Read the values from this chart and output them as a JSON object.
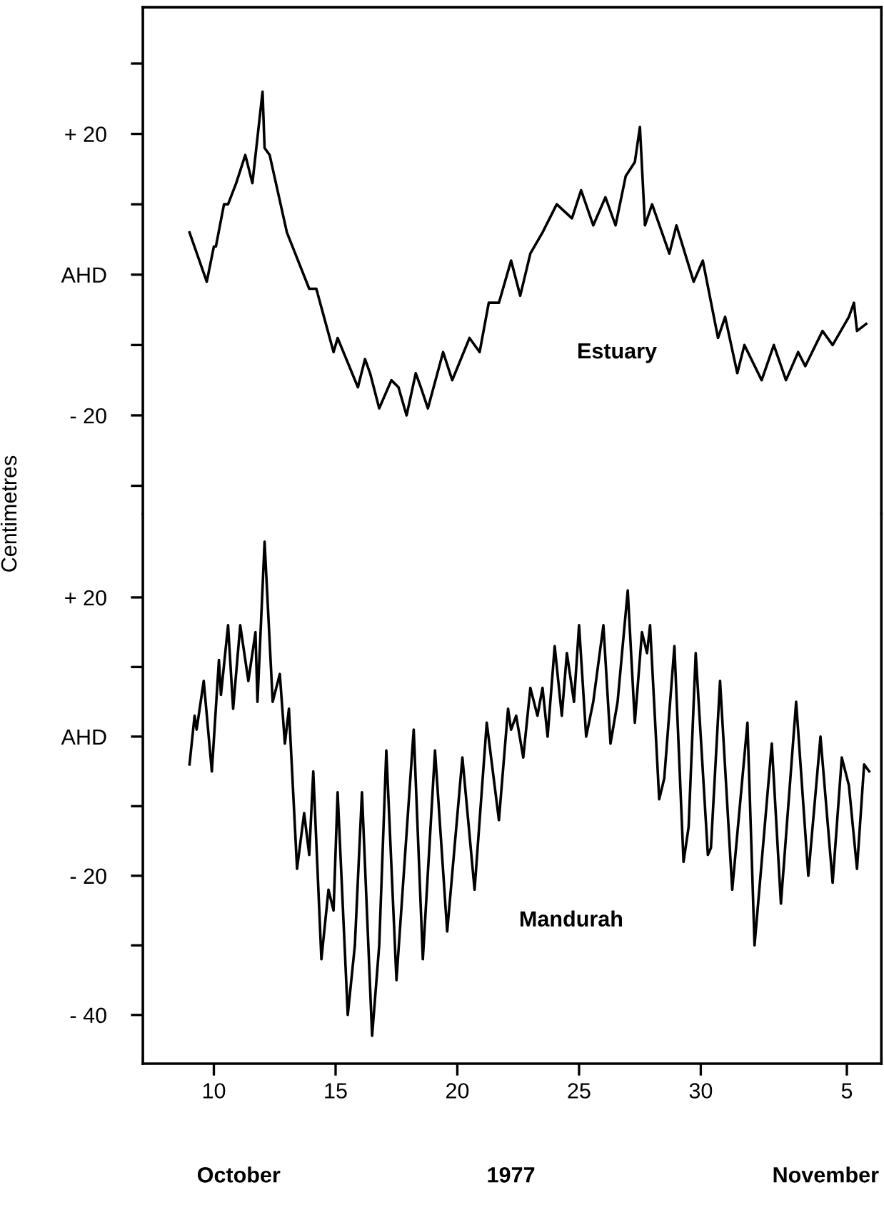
{
  "chart_data": [
    {
      "type": "line",
      "line_style": "solid",
      "tick_labels": "y",
      "xlim": [
        "1977-10-07T02:00",
        "1977-11-06T10:00"
      ],
      "ylim": [
        -34,
        38
      ],
      "yticks": [
        {
          "value": 30,
          "label": null
        },
        {
          "value": 20,
          "label": "+ 20"
        },
        {
          "value": 10,
          "label": null
        },
        {
          "value": 0,
          "label": "AHD"
        },
        {
          "value": -10,
          "label": null
        },
        {
          "value": -20,
          "label": "- 20"
        },
        {
          "value": -30,
          "label": null
        }
      ],
      "series": [
        {
          "name": "Estuary",
          "color": "#000000",
          "x": [
            "1977-10-09T00:00",
            "1977-10-09T17:00",
            "1977-10-10T00:00",
            "1977-10-10T02:00",
            "1977-10-10T10:00",
            "1977-10-10T14:00",
            "1977-10-10T22:00",
            "1977-10-11T07:00",
            "1977-10-11T14:00",
            "1977-10-12T00:00",
            "1977-10-12T02:00",
            "1977-10-12T07:00",
            "1977-10-13T00:00",
            "1977-10-13T22:00",
            "1977-10-14T05:00",
            "1977-10-14T22:00",
            "1977-10-15T02:00",
            "1977-10-15T22:00",
            "1977-10-16T05:00",
            "1977-10-16T10:00",
            "1977-10-16T19:00",
            "1977-10-17T07:00",
            "1977-10-17T14:00",
            "1977-10-17T22:00",
            "1977-10-18T07:00",
            "1977-10-18T12:00",
            "1977-10-18T19:00",
            "1977-10-19T10:00",
            "1977-10-19T19:00",
            "1977-10-20T12:00",
            "1977-10-20T22:00",
            "1977-10-21T07:00",
            "1977-10-21T17:00",
            "1977-10-22T05:00",
            "1977-10-22T14:00",
            "1977-10-23T00:00",
            "1977-10-23T12:00",
            "1977-10-24T02:00",
            "1977-10-24T17:00",
            "1977-10-25T02:00",
            "1977-10-25T14:00",
            "1977-10-26T02:00",
            "1977-10-26T12:00",
            "1977-10-26T22:00",
            "1977-10-27T07:00",
            "1977-10-27T12:00",
            "1977-10-27T17:00",
            "1977-10-28T00:00",
            "1977-10-28T17:00",
            "1977-10-29T00:00",
            "1977-10-29T17:00",
            "1977-10-30T02:00",
            "1977-10-30T17:00",
            "1977-10-31T00:00",
            "1977-10-31T12:00",
            "1977-10-31T19:00",
            "1977-11-01T12:00",
            "1977-11-02T00:00",
            "1977-11-02T12:00",
            "1977-11-03T00:00",
            "1977-11-03T07:00",
            "1977-11-04T00:00",
            "1977-11-04T10:00",
            "1977-11-05T02:00",
            "1977-11-05T07:00",
            "1977-11-05T10:00",
            "1977-11-05T19:00"
          ],
          "values": [
            6,
            -1,
            4,
            4,
            10,
            10,
            13,
            17,
            13,
            26,
            18,
            17,
            6,
            -2,
            -2,
            -11,
            -9,
            -16,
            -12,
            -14,
            -19,
            -15,
            -16,
            -20,
            -14,
            -16,
            -19,
            -11,
            -15,
            -9,
            -11,
            -4,
            -4,
            2,
            -3,
            3,
            6,
            10,
            8,
            12,
            7,
            11,
            7,
            14,
            16,
            21,
            7,
            10,
            3,
            7,
            -1,
            2,
            -9,
            -6,
            -14,
            -10,
            -15,
            -10,
            -15,
            -11,
            -13,
            -8,
            -10,
            -6,
            -4,
            -8,
            -7
          ]
        }
      ]
    },
    {
      "type": "line",
      "line_style": "solid",
      "xlim": [
        "1977-10-07T02:00",
        "1977-11-06T10:00"
      ],
      "ylim": [
        -47,
        32
      ],
      "ylabel": "Centimetres",
      "xticks": [
        {
          "value": "1977-10-10",
          "label": "10"
        },
        {
          "value": "1977-10-15",
          "label": "15"
        },
        {
          "value": "1977-10-20",
          "label": "20"
        },
        {
          "value": "1977-10-25",
          "label": "25"
        },
        {
          "value": "1977-10-30",
          "label": "30"
        },
        {
          "value": "1977-11-05",
          "label": "5"
        }
      ],
      "yticks": [
        {
          "value": 20,
          "label": "+ 20"
        },
        {
          "value": 10,
          "label": null
        },
        {
          "value": 0,
          "label": "AHD"
        },
        {
          "value": -10,
          "label": null
        },
        {
          "value": -20,
          "label": "- 20"
        },
        {
          "value": -30,
          "label": null
        },
        {
          "value": -40,
          "label": "- 40"
        }
      ],
      "annotations": [
        "October",
        "1977",
        "November"
      ],
      "series": [
        {
          "name": "Mandurah",
          "color": "#000000",
          "x": [
            "1977-10-09T00:00",
            "1977-10-09T05:00",
            "1977-10-09T07:00",
            "1977-10-09T14:00",
            "1977-10-09T22:00",
            "1977-10-10T05:00",
            "1977-10-10T07:00",
            "1977-10-10T14:00",
            "1977-10-10T19:00",
            "1977-10-11T02:00",
            "1977-10-11T10:00",
            "1977-10-11T17:00",
            "1977-10-11T19:00",
            "1977-10-12T02:00",
            "1977-10-12T10:00",
            "1977-10-12T17:00",
            "1977-10-12T22:00",
            "1977-10-13T02:00",
            "1977-10-13T10:00",
            "1977-10-13T17:00",
            "1977-10-13T22:00",
            "1977-10-14T02:00",
            "1977-10-14T10:00",
            "1977-10-14T17:00",
            "1977-10-14T22:00",
            "1977-10-15T02:00",
            "1977-10-15T12:00",
            "1977-10-15T19:00",
            "1977-10-16T02:00",
            "1977-10-16T12:00",
            "1977-10-16T19:00",
            "1977-10-17T02:00",
            "1977-10-17T12:00",
            "1977-10-18T05:00",
            "1977-10-18T14:00",
            "1977-10-19T02:00",
            "1977-10-19T14:00",
            "1977-10-20T05:00",
            "1977-10-20T17:00",
            "1977-10-21T05:00",
            "1977-10-21T17:00",
            "1977-10-22T02:00",
            "1977-10-22T05:00",
            "1977-10-22T10:00",
            "1977-10-22T17:00",
            "1977-10-23T00:00",
            "1977-10-23T07:00",
            "1977-10-23T12:00",
            "1977-10-23T17:00",
            "1977-10-24T00:00",
            "1977-10-24T07:00",
            "1977-10-24T12:00",
            "1977-10-24T19:00",
            "1977-10-25T00:00",
            "1977-10-25T07:00",
            "1977-10-25T14:00",
            "1977-10-26T00:00",
            "1977-10-26T07:00",
            "1977-10-26T14:00",
            "1977-10-27T00:00",
            "1977-10-27T07:00",
            "1977-10-27T14:00",
            "1977-10-27T19:00",
            "1977-10-27T22:00",
            "1977-10-28T07:00",
            "1977-10-28T12:00",
            "1977-10-28T22:00",
            "1977-10-29T07:00",
            "1977-10-29T12:00",
            "1977-10-29T19:00",
            "1977-10-30T07:00",
            "1977-10-30T10:00",
            "1977-10-30T19:00",
            "1977-10-31T07:00",
            "1977-10-31T22:00",
            "1977-11-01T05:00",
            "1977-11-01T22:00",
            "1977-11-02T07:00",
            "1977-11-02T22:00",
            "1977-11-03T10:00",
            "1977-11-03T22:00",
            "1977-11-04T10:00",
            "1977-11-04T19:00",
            "1977-11-05T02:00",
            "1977-11-05T10:00",
            "1977-11-05T17:00",
            "1977-11-05T22:00"
          ],
          "values": [
            -4,
            3,
            1,
            8,
            -5,
            11,
            6,
            16,
            4,
            16,
            8,
            15,
            5,
            28,
            5,
            9,
            -1,
            4,
            -19,
            -11,
            -17,
            -5,
            -32,
            -22,
            -25,
            -8,
            -40,
            -30,
            -8,
            -43,
            -30,
            -2,
            -35,
            1,
            -32,
            -2,
            -28,
            -3,
            -22,
            2,
            -12,
            4,
            1,
            3,
            -3,
            7,
            3,
            7,
            0,
            13,
            3,
            12,
            5,
            16,
            0,
            5,
            16,
            -1,
            5,
            21,
            2,
            15,
            12,
            16,
            -9,
            -6,
            13,
            -18,
            -13,
            12,
            -17,
            -16,
            8,
            -22,
            2,
            -30,
            -1,
            -24,
            5,
            -20,
            0,
            -21,
            -3,
            -7,
            -19,
            -4,
            -5
          ]
        }
      ]
    }
  ]
}
